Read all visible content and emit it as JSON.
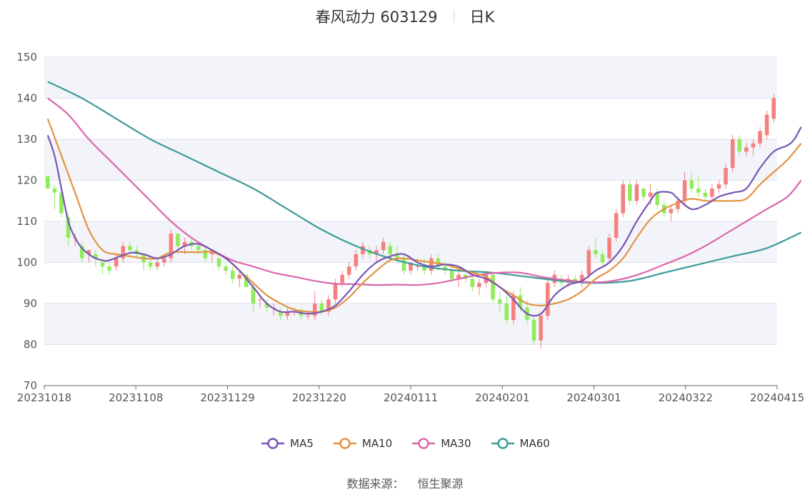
{
  "header": {
    "name": "春风动力",
    "code": "603129",
    "period": "日K"
  },
  "source": {
    "label": "数据来源：",
    "value": "恒生聚源"
  },
  "colors": {
    "up": "#f4807f",
    "down": "#91ec5b",
    "MA5": "#7856b3",
    "MA10": "#e49241",
    "MA30": "#dc66ad",
    "MA60": "#3f9a9a",
    "band": "#f3f4fa",
    "grid": "#dfe3ee"
  },
  "chart_data": {
    "type": "candlestick",
    "y_ticks": [
      "70",
      "80",
      "90",
      "100",
      "110",
      "120",
      "130",
      "140",
      "150"
    ],
    "x_ticks": [
      "20231018",
      "20231108",
      "20231129",
      "20231220",
      "20240111",
      "20240201",
      "20240301",
      "20240322",
      "20240415"
    ],
    "ylim": [
      70,
      150
    ],
    "grid": true,
    "legend_position": "bottom-center",
    "series_names": [
      "MA5",
      "MA10",
      "MA30",
      "MA60"
    ],
    "ohlc": [
      [
        121,
        121,
        118,
        118
      ],
      [
        118,
        119,
        113,
        117
      ],
      [
        117,
        119,
        111,
        112
      ],
      [
        111,
        112,
        104,
        106
      ],
      [
        106,
        107,
        104,
        106
      ],
      [
        104,
        105,
        100,
        101
      ],
      [
        102,
        103,
        100,
        103
      ],
      [
        102,
        103,
        99,
        101
      ],
      [
        100,
        101,
        97,
        99
      ],
      [
        99,
        100,
        97,
        98
      ],
      [
        99,
        102,
        98,
        101
      ],
      [
        101,
        105,
        100,
        104
      ],
      [
        104,
        105,
        102,
        103
      ],
      [
        103,
        104,
        101,
        102
      ],
      [
        102,
        102,
        98,
        100
      ],
      [
        100,
        101,
        98,
        99
      ],
      [
        99,
        101,
        98,
        100
      ],
      [
        100,
        102,
        99,
        101
      ],
      [
        101,
        108,
        100,
        107
      ],
      [
        107,
        107,
        102,
        104
      ],
      [
        104,
        106,
        102,
        105
      ],
      [
        105,
        106,
        103,
        104
      ],
      [
        104,
        105,
        102,
        103
      ],
      [
        103,
        104,
        100,
        101
      ],
      [
        102,
        103,
        100,
        103
      ],
      [
        101,
        101,
        98,
        99
      ],
      [
        99,
        100,
        97,
        98
      ],
      [
        98,
        99,
        95,
        96
      ],
      [
        96,
        98,
        94,
        97
      ],
      [
        97,
        97,
        94,
        94
      ],
      [
        94,
        95,
        88,
        90
      ],
      [
        91,
        92,
        89,
        91
      ],
      [
        90,
        91,
        88,
        89
      ],
      [
        89,
        90,
        87,
        89
      ],
      [
        88,
        89,
        86,
        87
      ],
      [
        87,
        89,
        86,
        88
      ],
      [
        88,
        89,
        87,
        88
      ],
      [
        88,
        89,
        86,
        87
      ],
      [
        87,
        88,
        86,
        87
      ],
      [
        87,
        93,
        86,
        90
      ],
      [
        90,
        91,
        87,
        88
      ],
      [
        88,
        92,
        87,
        91
      ],
      [
        91,
        96,
        90,
        95
      ],
      [
        95,
        98,
        94,
        97
      ],
      [
        97,
        100,
        96,
        99
      ],
      [
        99,
        103,
        98,
        102
      ],
      [
        102,
        105,
        101,
        104
      ],
      [
        103,
        104,
        101,
        102
      ],
      [
        102,
        104,
        100,
        103
      ],
      [
        103,
        106,
        102,
        105
      ],
      [
        104,
        105,
        101,
        102
      ],
      [
        102,
        104,
        100,
        101
      ],
      [
        101,
        102,
        97,
        98
      ],
      [
        98,
        100,
        97,
        100
      ],
      [
        99,
        101,
        98,
        99
      ],
      [
        99,
        101,
        97,
        98
      ],
      [
        98,
        102,
        97,
        101
      ],
      [
        101,
        102,
        98,
        99
      ],
      [
        99,
        100,
        97,
        98
      ],
      [
        98,
        99,
        95,
        96
      ],
      [
        96,
        99,
        94,
        97
      ],
      [
        97,
        98,
        95,
        96
      ],
      [
        96,
        97,
        93,
        94
      ],
      [
        94,
        96,
        92,
        95
      ],
      [
        95,
        98,
        94,
        97
      ],
      [
        97,
        97,
        90,
        91
      ],
      [
        91,
        93,
        88,
        90
      ],
      [
        90,
        92,
        85,
        86
      ],
      [
        86,
        93,
        85,
        92
      ],
      [
        92,
        94,
        88,
        89
      ],
      [
        89,
        91,
        85,
        86
      ],
      [
        86,
        87,
        80,
        81
      ],
      [
        81,
        88,
        79,
        87
      ],
      [
        87,
        96,
        86,
        95
      ],
      [
        95,
        98,
        94,
        97
      ],
      [
        96,
        97,
        94,
        95
      ],
      [
        95,
        97,
        94,
        96
      ],
      [
        96,
        97,
        95,
        95
      ],
      [
        95,
        98,
        94,
        97
      ],
      [
        97,
        104,
        96,
        103
      ],
      [
        103,
        106,
        101,
        102
      ],
      [
        102,
        103,
        99,
        100
      ],
      [
        101,
        107,
        100,
        106
      ],
      [
        106,
        113,
        105,
        112
      ],
      [
        112,
        120,
        111,
        119
      ],
      [
        119,
        120,
        114,
        115
      ],
      [
        115,
        120,
        114,
        119
      ],
      [
        118,
        118,
        115,
        116
      ],
      [
        116,
        119,
        114,
        117
      ],
      [
        117,
        118,
        113,
        114
      ],
      [
        114,
        115,
        111,
        112
      ],
      [
        112,
        114,
        110,
        113
      ],
      [
        113,
        116,
        112,
        115
      ],
      [
        115,
        122,
        114,
        120
      ],
      [
        120,
        122,
        117,
        118
      ],
      [
        118,
        121,
        116,
        117
      ],
      [
        117,
        118,
        115,
        116
      ],
      [
        116,
        119,
        115,
        118
      ],
      [
        118,
        120,
        117,
        119
      ],
      [
        119,
        124,
        118,
        123
      ],
      [
        123,
        131,
        122,
        130
      ],
      [
        130,
        131,
        126,
        127
      ],
      [
        127,
        129,
        126,
        128
      ],
      [
        128,
        130,
        126,
        129
      ],
      [
        129,
        133,
        128,
        132
      ],
      [
        131,
        137,
        130,
        136
      ],
      [
        135,
        141,
        134,
        140
      ]
    ],
    "ma": {
      "MA5": [
        [
          0,
          131
        ],
        [
          1,
          126
        ],
        [
          2,
          118
        ],
        [
          3,
          110
        ],
        [
          4,
          106
        ],
        [
          5,
          103.5
        ],
        [
          6,
          102
        ],
        [
          7,
          101
        ],
        [
          8,
          100.5
        ],
        [
          9,
          100.5
        ],
        [
          12,
          102.3
        ],
        [
          14,
          102
        ],
        [
          16,
          101
        ],
        [
          18,
          102
        ],
        [
          20,
          104
        ],
        [
          22,
          104.5
        ],
        [
          24,
          103
        ],
        [
          26,
          101
        ],
        [
          28,
          98
        ],
        [
          30,
          94
        ],
        [
          32,
          90
        ],
        [
          34,
          88
        ],
        [
          36,
          88
        ],
        [
          38,
          87.5
        ],
        [
          40,
          88
        ],
        [
          42,
          89.5
        ],
        [
          44,
          93
        ],
        [
          46,
          97
        ],
        [
          48,
          100
        ],
        [
          50,
          101.5
        ],
        [
          52,
          102
        ],
        [
          54,
          100
        ],
        [
          56,
          99
        ],
        [
          58,
          99.5
        ],
        [
          60,
          99
        ],
        [
          62,
          97
        ],
        [
          64,
          96
        ],
        [
          66,
          94
        ],
        [
          68,
          91
        ],
        [
          70,
          87.5
        ],
        [
          72,
          87.5
        ],
        [
          74,
          92
        ],
        [
          76,
          94.5
        ],
        [
          78,
          95.5
        ],
        [
          80,
          98
        ],
        [
          82,
          100
        ],
        [
          84,
          104
        ],
        [
          86,
          110
        ],
        [
          88,
          115
        ],
        [
          89,
          117
        ],
        [
          91,
          117
        ],
        [
          92,
          115.5
        ],
        [
          94,
          113
        ],
        [
          96,
          114
        ],
        [
          98,
          116
        ],
        [
          100,
          117
        ],
        [
          102,
          118
        ],
        [
          104,
          123
        ],
        [
          106,
          127
        ],
        [
          108,
          128.5
        ],
        [
          109,
          130
        ],
        [
          110,
          133
        ]
      ],
      "MA10": [
        [
          0,
          135
        ],
        [
          2,
          126
        ],
        [
          4,
          117
        ],
        [
          6,
          108
        ],
        [
          8,
          103
        ],
        [
          10,
          102
        ],
        [
          12,
          101.5
        ],
        [
          14,
          101
        ],
        [
          16,
          101
        ],
        [
          18,
          102.5
        ],
        [
          20,
          102.5
        ],
        [
          22,
          102.5
        ],
        [
          24,
          102.5
        ],
        [
          26,
          101
        ],
        [
          28,
          98
        ],
        [
          30,
          95
        ],
        [
          32,
          92
        ],
        [
          34,
          90
        ],
        [
          36,
          88.5
        ],
        [
          38,
          88
        ],
        [
          40,
          88
        ],
        [
          42,
          89
        ],
        [
          44,
          91.5
        ],
        [
          46,
          95
        ],
        [
          48,
          98
        ],
        [
          50,
          100.5
        ],
        [
          52,
          101
        ],
        [
          54,
          100.5
        ],
        [
          56,
          100
        ],
        [
          58,
          99.5
        ],
        [
          60,
          98.5
        ],
        [
          62,
          97.5
        ],
        [
          64,
          96.5
        ],
        [
          66,
          94
        ],
        [
          68,
          92
        ],
        [
          70,
          90
        ],
        [
          72,
          89.5
        ],
        [
          74,
          90
        ],
        [
          76,
          91
        ],
        [
          78,
          93
        ],
        [
          80,
          96
        ],
        [
          82,
          98
        ],
        [
          84,
          101
        ],
        [
          86,
          106
        ],
        [
          88,
          110.5
        ],
        [
          90,
          113
        ],
        [
          92,
          114.5
        ],
        [
          94,
          115.5
        ],
        [
          96,
          115
        ],
        [
          98,
          115
        ],
        [
          100,
          115
        ],
        [
          102,
          115.5
        ],
        [
          104,
          119
        ],
        [
          106,
          122
        ],
        [
          108,
          125
        ],
        [
          110,
          129
        ]
      ],
      "MA30": [
        [
          0,
          140
        ],
        [
          3,
          136
        ],
        [
          6,
          130
        ],
        [
          9,
          125
        ],
        [
          12,
          120
        ],
        [
          15,
          115
        ],
        [
          18,
          110
        ],
        [
          21,
          106
        ],
        [
          24,
          103
        ],
        [
          27,
          100.5
        ],
        [
          30,
          99
        ],
        [
          33,
          97.5
        ],
        [
          36,
          96.5
        ],
        [
          39,
          95.5
        ],
        [
          42,
          94.8
        ],
        [
          45,
          94.7
        ],
        [
          48,
          94.5
        ],
        [
          51,
          94.6
        ],
        [
          54,
          94.5
        ],
        [
          57,
          95
        ],
        [
          60,
          96
        ],
        [
          63,
          97
        ],
        [
          66,
          97.5
        ],
        [
          69,
          97.5
        ],
        [
          72,
          96.5
        ],
        [
          75,
          95.8
        ],
        [
          78,
          95.3
        ],
        [
          81,
          95.2
        ],
        [
          84,
          96
        ],
        [
          87,
          97.5
        ],
        [
          90,
          99.5
        ],
        [
          93,
          101.5
        ],
        [
          96,
          104
        ],
        [
          99,
          107
        ],
        [
          102,
          110
        ],
        [
          105,
          113
        ],
        [
          108,
          116
        ],
        [
          110,
          120
        ]
      ],
      "MA60": [
        [
          0,
          144
        ],
        [
          5,
          140
        ],
        [
          10,
          135
        ],
        [
          15,
          130
        ],
        [
          20,
          126
        ],
        [
          25,
          122
        ],
        [
          30,
          118
        ],
        [
          35,
          113
        ],
        [
          40,
          108
        ],
        [
          45,
          104
        ],
        [
          50,
          101
        ],
        [
          55,
          99
        ],
        [
          60,
          98
        ],
        [
          65,
          97.5
        ],
        [
          70,
          96.5
        ],
        [
          75,
          95.5
        ],
        [
          80,
          95
        ],
        [
          85,
          95.5
        ],
        [
          90,
          97.5
        ],
        [
          95,
          99.5
        ],
        [
          100,
          101.5
        ],
        [
          105,
          103.5
        ],
        [
          110,
          107.3
        ]
      ]
    }
  }
}
